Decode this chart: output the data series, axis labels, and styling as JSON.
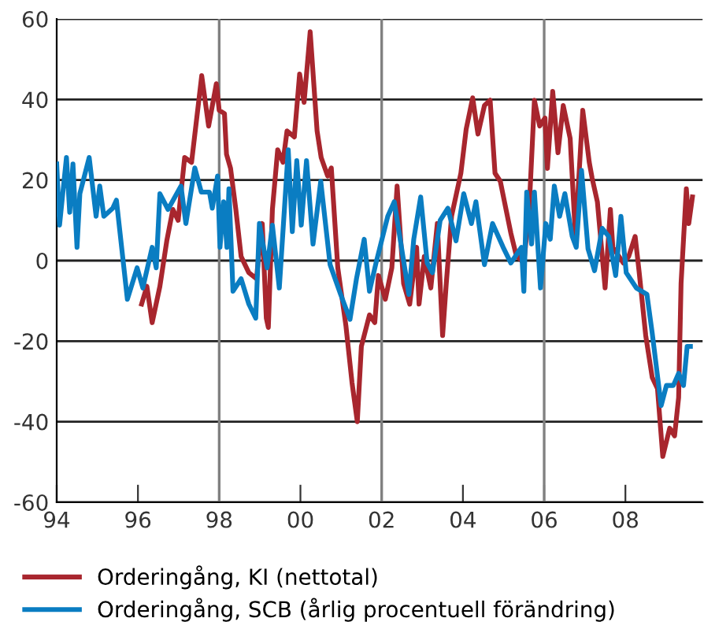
{
  "chart_data": {
    "type": "line",
    "series": [
      {
        "name": "Orderingång, KI (nettotal)",
        "color": "#a8262e",
        "x": [
          1996.09,
          1996.22,
          1996.35,
          1996.54,
          1996.71,
          1996.86,
          1996.99,
          1997.15,
          1997.32,
          1997.57,
          1997.74,
          1997.93,
          1998.0,
          1998.13,
          1998.18,
          1998.28,
          1998.41,
          1998.54,
          1998.73,
          1998.92,
          1998.99,
          1999.06,
          1999.16,
          1999.21,
          1999.31,
          1999.44,
          1999.57,
          1999.67,
          1999.85,
          1999.98,
          2000.09,
          2000.24,
          2000.41,
          2000.51,
          2000.67,
          2000.76,
          2000.92,
          2001.12,
          2001.27,
          2001.4,
          2001.5,
          2001.7,
          2001.83,
          2001.92,
          2002.09,
          2002.25,
          2002.38,
          2002.54,
          2002.69,
          2002.86,
          2002.92,
          2003.05,
          2003.21,
          2003.37,
          2003.5,
          2003.59,
          2003.72,
          2003.95,
          2004.08,
          2004.24,
          2004.37,
          2004.53,
          2004.67,
          2004.79,
          2004.92,
          2005.18,
          2005.31,
          2005.5,
          2005.63,
          2005.76,
          2005.89,
          2006.02,
          2006.08,
          2006.21,
          2006.34,
          2006.47,
          2006.64,
          2006.77,
          2006.95,
          2007.11,
          2007.18,
          2007.31,
          2007.5,
          2007.63,
          2007.69,
          2007.95,
          2008.08,
          2008.24,
          2008.34,
          2008.5,
          2008.66,
          2008.79,
          2008.92,
          2009.09,
          2009.21,
          2009.31,
          2009.37,
          2009.5,
          2009.56,
          2009.65
        ],
        "values": [
          -10.8,
          -6.4,
          -15.4,
          -6.4,
          4.9,
          12.7,
          10,
          25.6,
          24.4,
          45.9,
          33.4,
          43.9,
          37.3,
          36.5,
          26.4,
          22.9,
          12.7,
          1,
          -3,
          -4.5,
          3.3,
          9.2,
          -14.3,
          -16.6,
          12.7,
          27.5,
          24.4,
          32.2,
          30.7,
          46.3,
          39.3,
          56.8,
          32.2,
          25.6,
          21,
          23,
          -1.8,
          -16.2,
          -30.3,
          -40,
          -21.3,
          -13.5,
          -15.4,
          -3.7,
          -9.6,
          -1.8,
          18.5,
          -5.7,
          -10.8,
          3.3,
          -10.8,
          1,
          -6.8,
          9.2,
          -18.6,
          -5.7,
          11,
          21.7,
          32.6,
          40.4,
          31.4,
          38.5,
          39.8,
          21.7,
          19.7,
          6.8,
          1.4,
          -0.6,
          12.7,
          39.8,
          33.4,
          35.4,
          22.9,
          42,
          26.8,
          38.5,
          30.3,
          6,
          37.3,
          24.4,
          20.5,
          14.6,
          -6.8,
          12.7,
          3.3,
          -0.6,
          1,
          6,
          -3,
          -18.6,
          -29,
          -31.8,
          -48.6,
          -41.6,
          -43.5,
          -34,
          -5.7,
          17.8,
          9.2,
          15.8
        ]
      },
      {
        "name": "Orderingång, SCB (årlig procentuell förändring)",
        "color": "#0a7dc2",
        "x": [
          1994.0,
          1994.07,
          1994.24,
          1994.32,
          1994.4,
          1994.5,
          1994.57,
          1994.8,
          1994.97,
          1995.06,
          1995.16,
          1995.38,
          1995.47,
          1995.74,
          1995.98,
          1996.12,
          1996.35,
          1996.45,
          1996.54,
          1996.74,
          1997.06,
          1997.18,
          1997.4,
          1997.56,
          1997.76,
          1997.83,
          1997.96,
          1998.02,
          1998.11,
          1998.19,
          1998.24,
          1998.34,
          1998.54,
          1998.73,
          1998.9,
          1998.99,
          1999.18,
          1999.31,
          1999.48,
          1999.7,
          1999.8,
          1999.91,
          2000.02,
          2000.15,
          2000.31,
          2000.5,
          2000.73,
          2000.99,
          2001.22,
          2001.38,
          2001.57,
          2001.7,
          2001.86,
          2002.15,
          2002.31,
          2002.67,
          2002.79,
          2002.96,
          2003.12,
          2003.25,
          2003.44,
          2003.63,
          2003.83,
          2004.02,
          2004.21,
          2004.32,
          2004.53,
          2004.73,
          2004.99,
          2005.18,
          2005.44,
          2005.5,
          2005.57,
          2005.69,
          2005.76,
          2005.91,
          2006.04,
          2006.15,
          2006.25,
          2006.38,
          2006.51,
          2006.69,
          2006.79,
          2006.92,
          2007.08,
          2007.24,
          2007.43,
          2007.59,
          2007.76,
          2007.89,
          2008.02,
          2008.27,
          2008.53,
          2008.66,
          2008.88,
          2009.01,
          2009.18,
          2009.31,
          2009.43,
          2009.52,
          2009.6
        ],
        "values": [
          24,
          8.8,
          25.6,
          12,
          24,
          3.3,
          16.6,
          25.6,
          11,
          18.5,
          11,
          13,
          15,
          -9.6,
          -1.8,
          -6.8,
          3.3,
          -1.8,
          16.6,
          12.7,
          18.5,
          9.2,
          23,
          17,
          17,
          13,
          21,
          3.3,
          14.6,
          3.3,
          17.8,
          -7.6,
          -4.5,
          -10.8,
          -14.3,
          9.2,
          -1.8,
          8.8,
          -6.8,
          27.5,
          7.2,
          24.8,
          8.8,
          24.8,
          4.1,
          19.7,
          -1,
          -8.4,
          -14.6,
          -4.5,
          5.3,
          -7.6,
          -0.6,
          11,
          14.6,
          -8.4,
          5.3,
          15.8,
          -0.6,
          -3,
          10,
          13,
          4.9,
          16.6,
          9.2,
          14.6,
          -1,
          9.2,
          3.3,
          -0.6,
          3.3,
          -7.6,
          17,
          4.1,
          17,
          -6.8,
          9.2,
          5.3,
          18.5,
          11,
          16.6,
          6,
          3.3,
          22.4,
          2.9,
          -2.5,
          8,
          6,
          -3.7,
          11,
          -3,
          -6.8,
          -8.4,
          -18,
          -36,
          -31,
          -31,
          -28,
          -31,
          -21.3,
          -21.3
        ]
      }
    ],
    "xlim": [
      1994,
      2009.9
    ],
    "xticks": [
      {
        "value": 1994,
        "label": "94"
      },
      {
        "value": 1996,
        "label": "96"
      },
      {
        "value": 1998,
        "label": "98"
      },
      {
        "value": 2000,
        "label": "00"
      },
      {
        "value": 2002,
        "label": "02"
      },
      {
        "value": 2004,
        "label": "04"
      },
      {
        "value": 2006,
        "label": "06"
      },
      {
        "value": 2008,
        "label": "08"
      }
    ],
    "ylim": [
      -60,
      60
    ],
    "yticks": [
      -60,
      -40,
      -20,
      0,
      20,
      40,
      60
    ],
    "ref_lines": [
      {
        "axis": "x",
        "value": 1998,
        "color": "#808080"
      },
      {
        "axis": "x",
        "value": 2002,
        "color": "#808080"
      },
      {
        "axis": "x",
        "value": 2006,
        "color": "#808080"
      }
    ],
    "grid": "y",
    "legend": "bottom",
    "marker": "none",
    "line_style": "solid"
  }
}
